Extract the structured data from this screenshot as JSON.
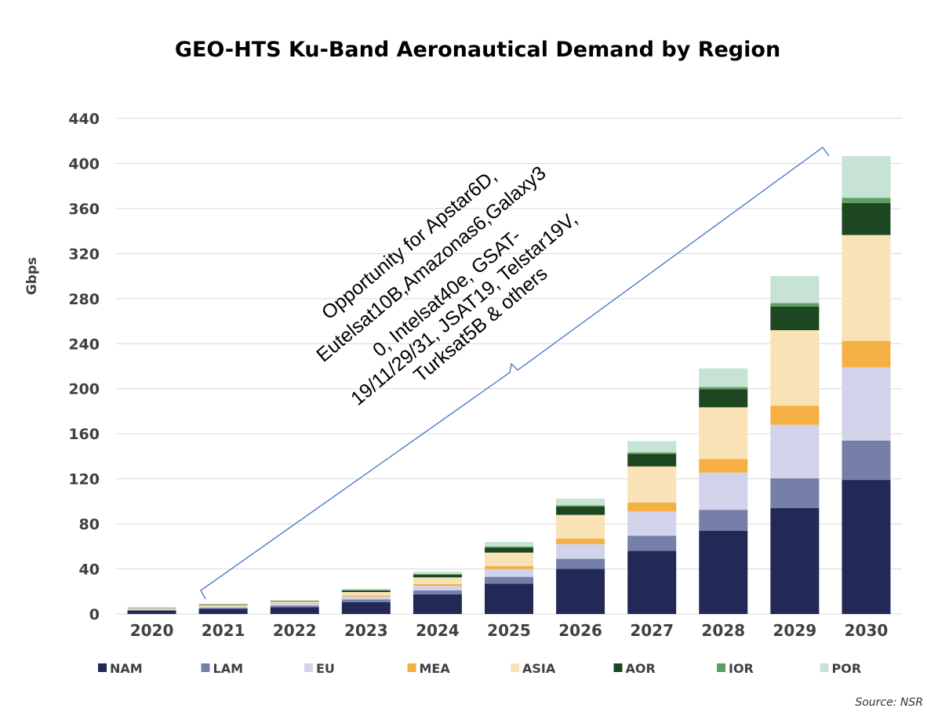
{
  "chart_data": {
    "type": "bar",
    "stacked": true,
    "title": "GEO-HTS Ku-Band Aeronautical Demand by Region",
    "ylabel": "Gbps",
    "xlabel": "",
    "ylim": [
      0,
      440
    ],
    "yticks": [
      0,
      40,
      80,
      120,
      160,
      200,
      240,
      280,
      320,
      360,
      400,
      440
    ],
    "grid": true,
    "legend_position": "bottom",
    "categories": [
      "2020",
      "2021",
      "2022",
      "2023",
      "2024",
      "2025",
      "2026",
      "2027",
      "2028",
      "2029",
      "2030"
    ],
    "series": [
      {
        "name": "NAM",
        "color": "#222957",
        "values": [
          3,
          4.5,
          6,
          10.5,
          17.5,
          27,
          40,
          56,
          74,
          94,
          119
        ]
      },
      {
        "name": "LAM",
        "color": "#757FA8",
        "values": [
          0.5,
          1,
          1.5,
          2.5,
          3.5,
          6,
          9,
          13.5,
          18.5,
          26.5,
          35
        ]
      },
      {
        "name": "EU",
        "color": "#D1D3EB",
        "values": [
          0.5,
          1,
          1.5,
          2.5,
          4,
          7,
          13,
          21.5,
          33,
          47.5,
          65
        ]
      },
      {
        "name": "MEA",
        "color": "#F4B042",
        "values": [
          0.2,
          0.3,
          0.5,
          1,
          1.5,
          2.5,
          5,
          8,
          12,
          17,
          23.5
        ]
      },
      {
        "name": "ASIA",
        "color": "#F9E3B6",
        "values": [
          0.8,
          1.2,
          1.5,
          3,
          6,
          12,
          21,
          32,
          46,
          67,
          94
        ]
      },
      {
        "name": "AOR",
        "color": "#1D4721",
        "values": [
          0.3,
          0.5,
          0.5,
          1.5,
          2.5,
          4.5,
          7.5,
          11,
          16,
          21,
          28.5
        ]
      },
      {
        "name": "IOR",
        "color": "#5F9E62",
        "values": [
          0.1,
          0.2,
          0.2,
          0.3,
          0.5,
          1,
          1,
          1.5,
          2,
          3,
          4.5
        ]
      },
      {
        "name": "POR",
        "color": "#C7E3D3",
        "values": [
          0.6,
          0.3,
          0.3,
          1.2,
          2,
          4,
          6,
          10,
          16.5,
          24,
          37
        ]
      }
    ],
    "annotation": {
      "lines": [
        "Opportunity for Apstar6D,",
        "Eutelsat10B,Amazonas6,Galaxy3",
        "0, Intelsat40e, GSAT-",
        "19/11/29/31, JSAT19, Telstar19V,",
        "Turksat5B & others"
      ],
      "brace_color": "#4472C4"
    },
    "source": "Source: NSR"
  }
}
